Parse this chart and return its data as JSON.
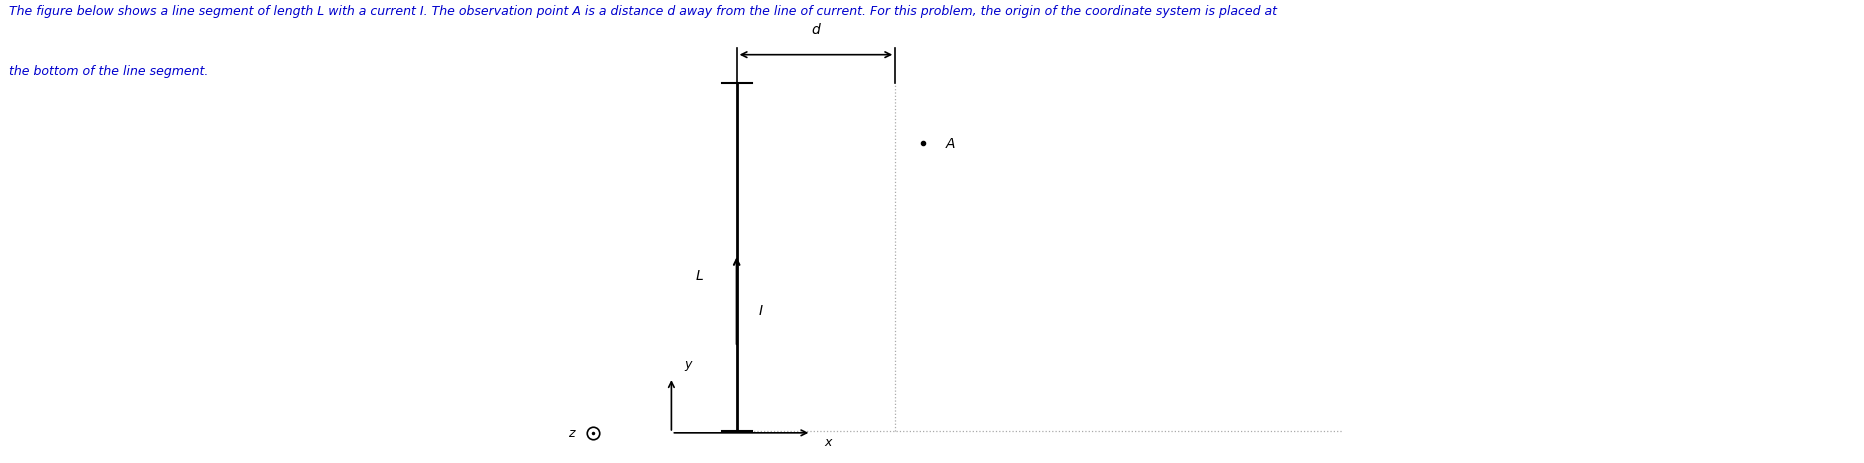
{
  "fig_width": 18.65,
  "fig_height": 4.64,
  "dpi": 100,
  "bg_color": "#ffffff",
  "text_color": "#000000",
  "blue_text_color": "#0000cd",
  "header_line1": "The figure below shows a line segment of length L with a current I. The observation point A is a distance d away from the line of current. For this problem, the origin of the coordinate system is placed at",
  "header_line2": "the bottom of the line segment.",
  "header_fontsize": 9.0,
  "label_L": "L",
  "label_I": "I",
  "label_d": "d",
  "label_A": "A",
  "label_y": "y",
  "label_x": "x",
  "label_z": "z",
  "dotted_line_color": "#aaaaaa",
  "wire_color": "#000000"
}
